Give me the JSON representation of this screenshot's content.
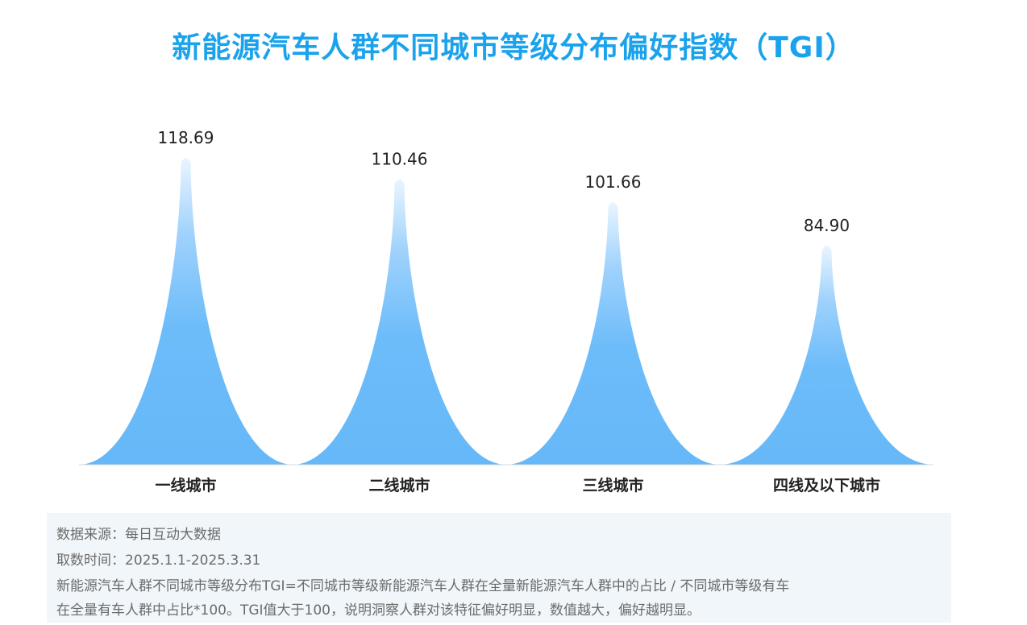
{
  "chart_data": {
    "type": "bar",
    "title": "新能源汽车人群不同城市等级分布偏好指数（TGI）",
    "categories": [
      "一线城市",
      "二线城市",
      "三线城市",
      "四线及以下城市"
    ],
    "values": [
      118.69,
      110.46,
      101.66,
      84.9
    ],
    "value_labels": [
      "118.69",
      "110.46",
      "101.66",
      "84.90"
    ],
    "xlabel": "",
    "ylabel": "",
    "ylim": [
      0,
      118.69
    ],
    "grid": false,
    "legend": "none",
    "colors": {
      "fill": "#6dbcfa",
      "title": "#1aa3ec",
      "label": "#222222"
    }
  },
  "notes": {
    "source": "数据来源：每日互动大数据",
    "period": "取数时间：2025.1.1-2025.3.31",
    "definition_line1": "新能源汽车人群不同城市等级分布TGI=不同城市等级新能源汽车人群在全量新能源汽车人群中的占比  / 不同城市等级有车",
    "definition_line2": "在全量有车人群中占比*100。TGI值大于100，说明洞察人群对该特征偏好明显，数值越大，偏好越明显。"
  }
}
